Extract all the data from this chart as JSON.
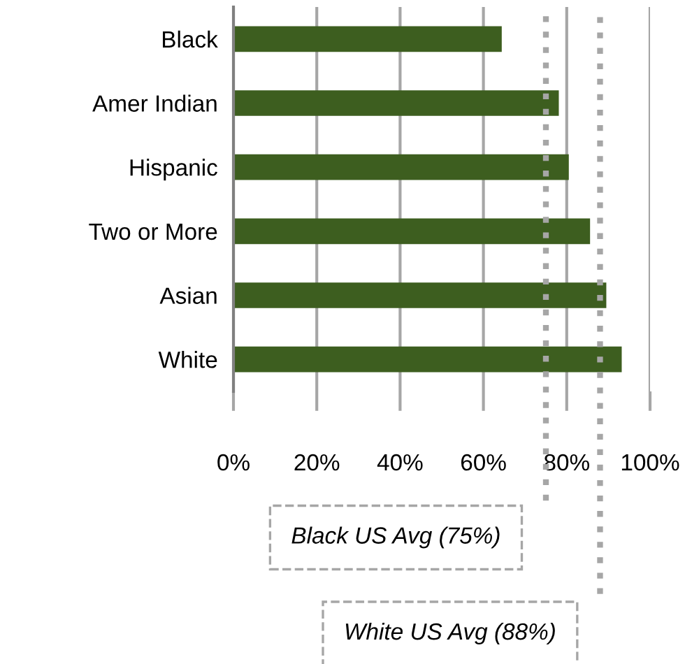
{
  "chart_data": {
    "type": "bar",
    "orientation": "horizontal",
    "categories": [
      "Black",
      "Amer Indian",
      "Hispanic",
      "Two or More",
      "Asian",
      "White"
    ],
    "values": [
      64.4,
      78.1,
      80.5,
      85.6,
      89.5,
      93.2
    ],
    "color": "#3d5e1f",
    "xlim": [
      0,
      100
    ],
    "xticks": [
      {
        "value": 0,
        "label": "0%"
      },
      {
        "value": 20,
        "label": "20%"
      },
      {
        "value": 40,
        "label": "40%"
      },
      {
        "value": 60,
        "label": "60%"
      },
      {
        "value": 80,
        "label": "80%"
      },
      {
        "value": 100,
        "label": "100%"
      }
    ],
    "grid": "x",
    "ref_lines": [
      {
        "axis": "x",
        "value": 75,
        "label": "Black US Avg (75%)",
        "color": "#a6a6a6",
        "line_style": "dotted"
      },
      {
        "axis": "x",
        "value": 88,
        "label": "White US Avg (88%)",
        "color": "#a6a6a6",
        "line_style": "dotted"
      }
    ]
  }
}
